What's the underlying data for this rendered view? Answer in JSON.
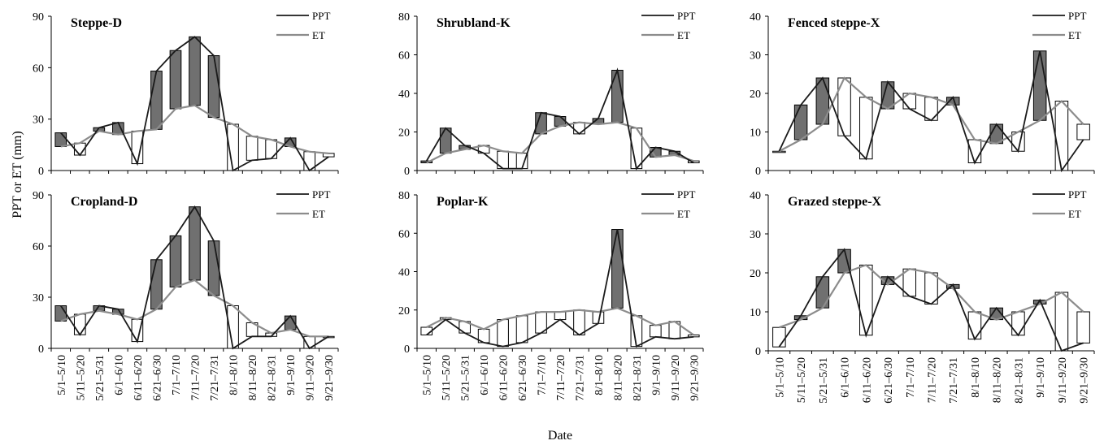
{
  "figure": {
    "ylabel": "PPT or ET (mm)",
    "xlabel": "Date"
  },
  "chart_data": [
    {
      "type": "line",
      "title": "Steppe-D",
      "categories": [
        "5/1–5/10",
        "5/11–5/20",
        "5/21–5/31",
        "6/1–6/10",
        "6/11–6/20",
        "6/21–6/30",
        "7/1–7/10",
        "7/11–7/20",
        "7/21–7/31",
        "8/1–8/10",
        "8/11–8/20",
        "8/21–8/31",
        "9/1–9/10",
        "9/11–9/20",
        "9/21–9/30"
      ],
      "series": [
        {
          "name": "PPT",
          "values": [
            22,
            9,
            25,
            28,
            4,
            58,
            70,
            78,
            67,
            0,
            6,
            7,
            19,
            0,
            8
          ]
        },
        {
          "name": "ET",
          "values": [
            14,
            16,
            23,
            21,
            23,
            24,
            36,
            38,
            31,
            27,
            20,
            18,
            14,
            11,
            10
          ]
        }
      ],
      "ylim": [
        0,
        90
      ],
      "yticks": [
        0,
        30,
        60,
        90
      ],
      "legend_position": "top-right"
    },
    {
      "type": "line",
      "title": "Shrubland-K",
      "categories": [
        "5/1–5/10",
        "5/11–5/20",
        "5/21–5/31",
        "6/1–6/10",
        "6/11–6/20",
        "6/21–6/30",
        "7/1–7/10",
        "7/11–7/20",
        "7/21–7/31",
        "8/1–8/10",
        "8/11–8/20",
        "8/21–8/31",
        "9/1–9/10",
        "9/11–9/20",
        "9/21–9/30"
      ],
      "series": [
        {
          "name": "PPT",
          "values": [
            5,
            22,
            13,
            9,
            1,
            1,
            30,
            28,
            19,
            27,
            52,
            1,
            12,
            10,
            4
          ]
        },
        {
          "name": "ET",
          "values": [
            4,
            9,
            11,
            13,
            10,
            9,
            19,
            23,
            25,
            24,
            25,
            22,
            7,
            8,
            5
          ]
        }
      ],
      "ylim": [
        0,
        80
      ],
      "yticks": [
        0,
        20,
        40,
        60,
        80
      ],
      "legend_position": "top-right"
    },
    {
      "type": "line",
      "title": "Fenced steppe-X",
      "categories": [
        "5/1–5/10",
        "5/11–5/20",
        "5/21–5/31",
        "6/1–6/10",
        "6/11–6/20",
        "6/21–6/30",
        "7/1–7/10",
        "7/11–7/20",
        "7/21–7/31",
        "8/1–8/10",
        "8/11–8/20",
        "8/21–8/31",
        "9/1–9/10",
        "9/11–9/20",
        "9/21–9/30"
      ],
      "series": [
        {
          "name": "PPT",
          "values": [
            5,
            17,
            24,
            9,
            3,
            23,
            16,
            13,
            19,
            2,
            12,
            5,
            31,
            0,
            8
          ]
        },
        {
          "name": "ET",
          "values": [
            5,
            8,
            12,
            24,
            19,
            16,
            20,
            19,
            17,
            8,
            7,
            10,
            13,
            18,
            12
          ]
        }
      ],
      "ylim": [
        0,
        40
      ],
      "yticks": [
        0,
        10,
        20,
        30,
        40
      ],
      "legend_position": "top-right"
    },
    {
      "type": "line",
      "title": "Cropland-D",
      "categories": [
        "5/1–5/10",
        "5/11–5/20",
        "5/21–5/31",
        "6/1–6/10",
        "6/11–6/20",
        "6/21–6/30",
        "7/1–7/10",
        "7/11–7/20",
        "7/21–7/31",
        "8/1–8/10",
        "8/11–8/20",
        "8/21–8/31",
        "9/1–9/10",
        "9/11–9/20",
        "9/21–9/30"
      ],
      "series": [
        {
          "name": "PPT",
          "values": [
            25,
            8,
            25,
            23,
            4,
            52,
            66,
            83,
            63,
            0,
            7,
            7,
            19,
            0,
            7
          ]
        },
        {
          "name": "ET",
          "values": [
            16,
            20,
            22,
            20,
            17,
            23,
            36,
            40,
            31,
            25,
            15,
            9,
            11,
            7,
            7
          ]
        }
      ],
      "ylim": [
        0,
        90
      ],
      "yticks": [
        0,
        30,
        60,
        90
      ],
      "legend_position": "top-right"
    },
    {
      "type": "line",
      "title": "Poplar-K",
      "categories": [
        "5/1–5/10",
        "5/11–5/20",
        "5/21–5/31",
        "6/1–6/10",
        "6/11–6/20",
        "6/21–6/30",
        "7/1–7/10",
        "7/11–7/20",
        "7/21–7/31",
        "8/1–8/10",
        "8/11–8/20",
        "8/21–8/31",
        "9/1–9/10",
        "9/11–9/20",
        "9/21–9/30"
      ],
      "series": [
        {
          "name": "PPT",
          "values": [
            7,
            15,
            8,
            3,
            1,
            3,
            8,
            15,
            7,
            13,
            62,
            1,
            6,
            5,
            6
          ]
        },
        {
          "name": "ET",
          "values": [
            11,
            16,
            14,
            10,
            15,
            17,
            19,
            19,
            20,
            19,
            21,
            17,
            12,
            14,
            7
          ]
        }
      ],
      "ylim": [
        0,
        80
      ],
      "yticks": [
        0,
        20,
        40,
        60,
        80
      ],
      "legend_position": "top-right"
    },
    {
      "type": "line",
      "title": "Grazed steppe-X",
      "categories": [
        "5/1–5/10",
        "5/11–5/20",
        "5/21–5/31",
        "6/1–6/10",
        "6/11–6/20",
        "6/21–6/30",
        "7/1–7/10",
        "7/11–7/20",
        "7/21–7/31",
        "8/1–8/10",
        "8/11–8/20",
        "8/21–8/31",
        "9/1–9/10",
        "9/11–9/20",
        "9/21–9/30"
      ],
      "series": [
        {
          "name": "PPT",
          "values": [
            1,
            9,
            19,
            26,
            4,
            19,
            14,
            12,
            17,
            3,
            11,
            4,
            13,
            0,
            2
          ]
        },
        {
          "name": "ET",
          "values": [
            6,
            8,
            11,
            20,
            22,
            17,
            21,
            20,
            16,
            10,
            8,
            10,
            12,
            15,
            10
          ]
        }
      ],
      "ylim": [
        0,
        40
      ],
      "yticks": [
        0,
        10,
        20,
        30,
        40
      ],
      "legend_position": "top-right"
    }
  ]
}
